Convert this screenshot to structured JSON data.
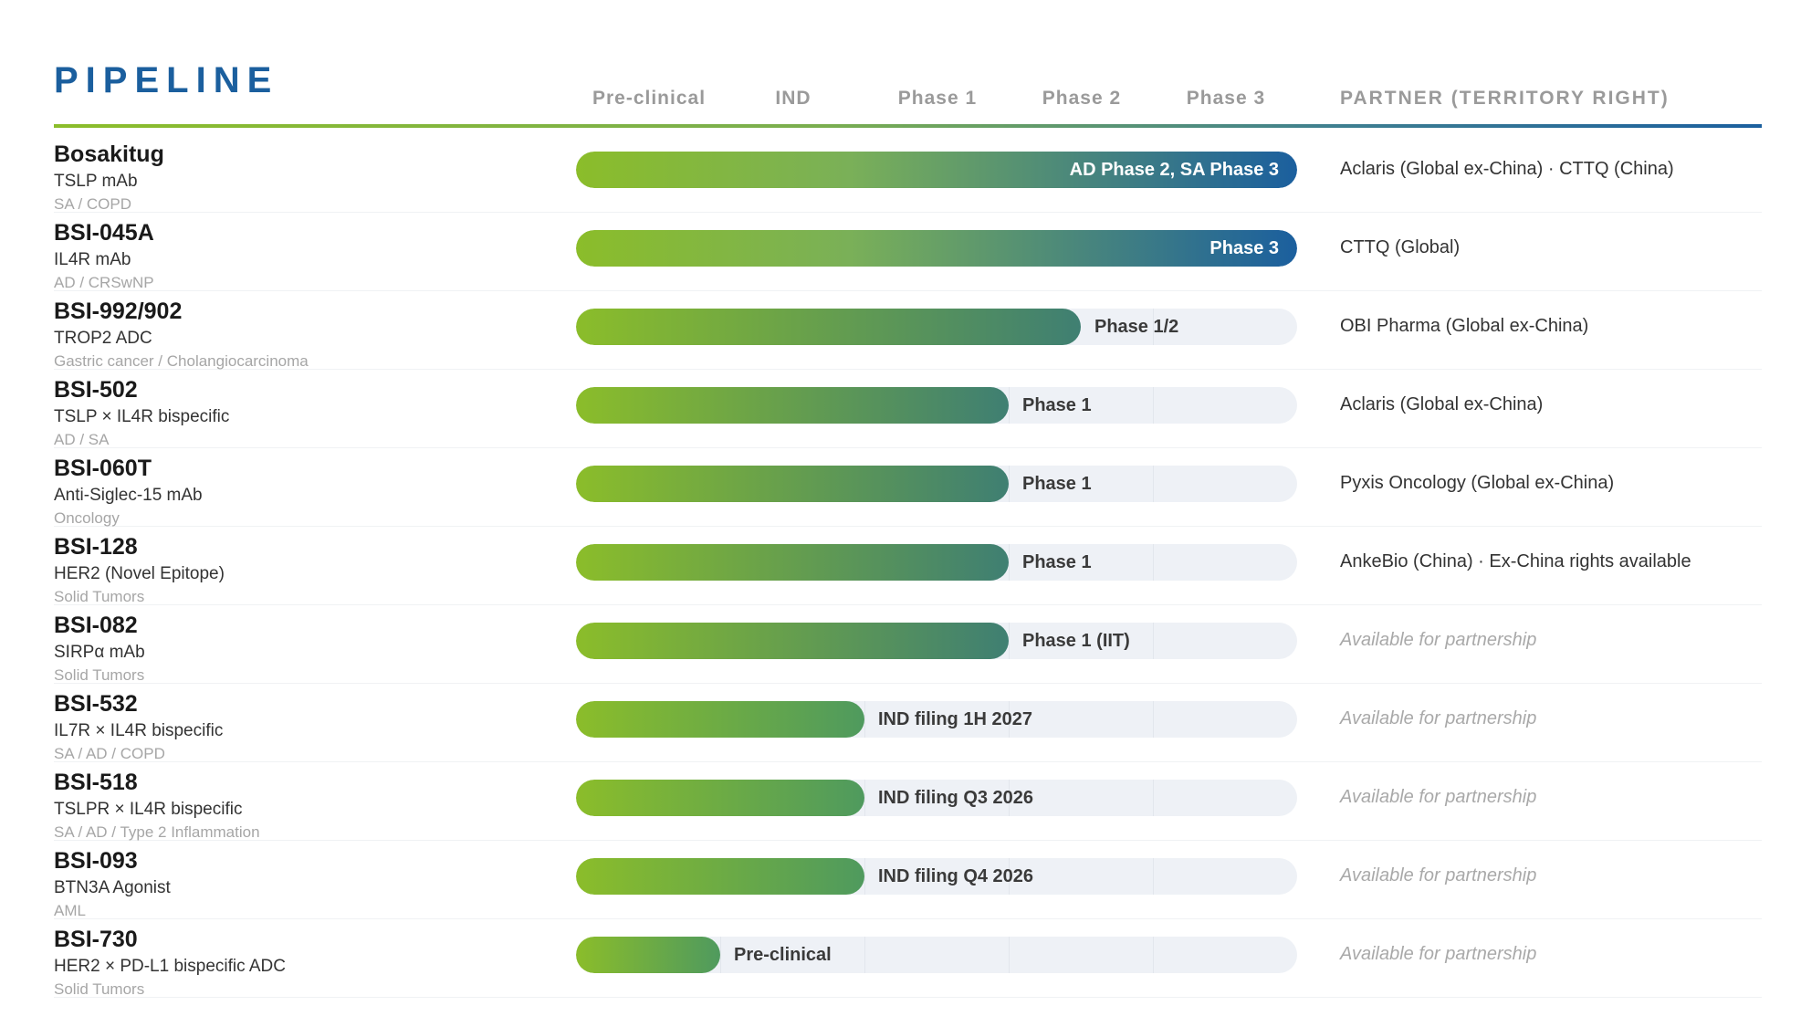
{
  "title": "PIPELINE",
  "chart_data": {
    "type": "bar",
    "stage_columns": [
      "Pre-clinical",
      "IND",
      "Phase 1",
      "Phase 2",
      "Phase 3"
    ],
    "partner_header": "PARTNER (TERRITORY RIGHT)",
    "stage_scale": {
      "min": 0,
      "max": 5,
      "unit": "stage columns"
    },
    "colors": {
      "green": "#8bbd2a",
      "mid": "#4a8a6e",
      "blue": "#1b5f9e",
      "track": "#eef1f6",
      "title": "#1b5f9e"
    },
    "rows": [
      {
        "name": "Bosakitug",
        "target": "TSLP mAb",
        "indication": "SA / COPD",
        "progress": 5.0,
        "stage_label": "AD Phase 2,  SA Phase 3",
        "partner": "Aclaris (Global ex-China) · CTTQ (China)",
        "available": false
      },
      {
        "name": "BSI-045A",
        "target": "IL4R mAb",
        "indication": "AD / CRSwNP",
        "progress": 5.0,
        "stage_label": "Phase 3",
        "partner": "CTTQ (Global)",
        "available": false
      },
      {
        "name": "BSI-992/902",
        "target": "TROP2 ADC",
        "indication": "Gastric cancer / Cholangiocarcinoma",
        "progress": 3.5,
        "stage_label": "Phase 1/2",
        "partner": "OBI Pharma (Global ex-China)",
        "available": false
      },
      {
        "name": "BSI-502",
        "target": "TSLP × IL4R bispecific",
        "indication": "AD / SA",
        "progress": 3.0,
        "stage_label": "Phase 1",
        "partner": "Aclaris (Global ex-China)",
        "available": false
      },
      {
        "name": "BSI-060T",
        "target": "Anti-Siglec-15 mAb",
        "indication": "Oncology",
        "progress": 3.0,
        "stage_label": "Phase 1",
        "partner": "Pyxis Oncology (Global ex-China)",
        "available": false
      },
      {
        "name": "BSI-128",
        "target": "HER2 (Novel Epitope)",
        "indication": "Solid Tumors",
        "progress": 3.0,
        "stage_label": "Phase 1",
        "partner": "AnkeBio (China) · Ex-China rights available",
        "available": false
      },
      {
        "name": "BSI-082",
        "target": "SIRPα mAb",
        "indication": "Solid Tumors",
        "progress": 3.0,
        "stage_label": "Phase 1 (IIT)",
        "partner": "Available for partnership",
        "available": true
      },
      {
        "name": "BSI-532",
        "target": "IL7R × IL4R bispecific",
        "indication": "SA / AD / COPD",
        "progress": 2.0,
        "stage_label": "IND filing 1H 2027",
        "partner": "Available for partnership",
        "available": true
      },
      {
        "name": "BSI-518",
        "target": "TSLPR × IL4R bispecific",
        "indication": "SA / AD / Type 2 Inflammation",
        "progress": 2.0,
        "stage_label": "IND filing Q3 2026",
        "partner": "Available for partnership",
        "available": true
      },
      {
        "name": "BSI-093",
        "target": "BTN3A Agonist",
        "indication": "AML",
        "progress": 2.0,
        "stage_label": "IND filing Q4 2026",
        "partner": "Available for partnership",
        "available": true
      },
      {
        "name": "BSI-730",
        "target": "HER2 × PD-L1 bispecific ADC",
        "indication": "Solid Tumors",
        "progress": 1.0,
        "stage_label": "Pre-clinical",
        "partner": "Available for partnership",
        "available": true
      }
    ]
  }
}
